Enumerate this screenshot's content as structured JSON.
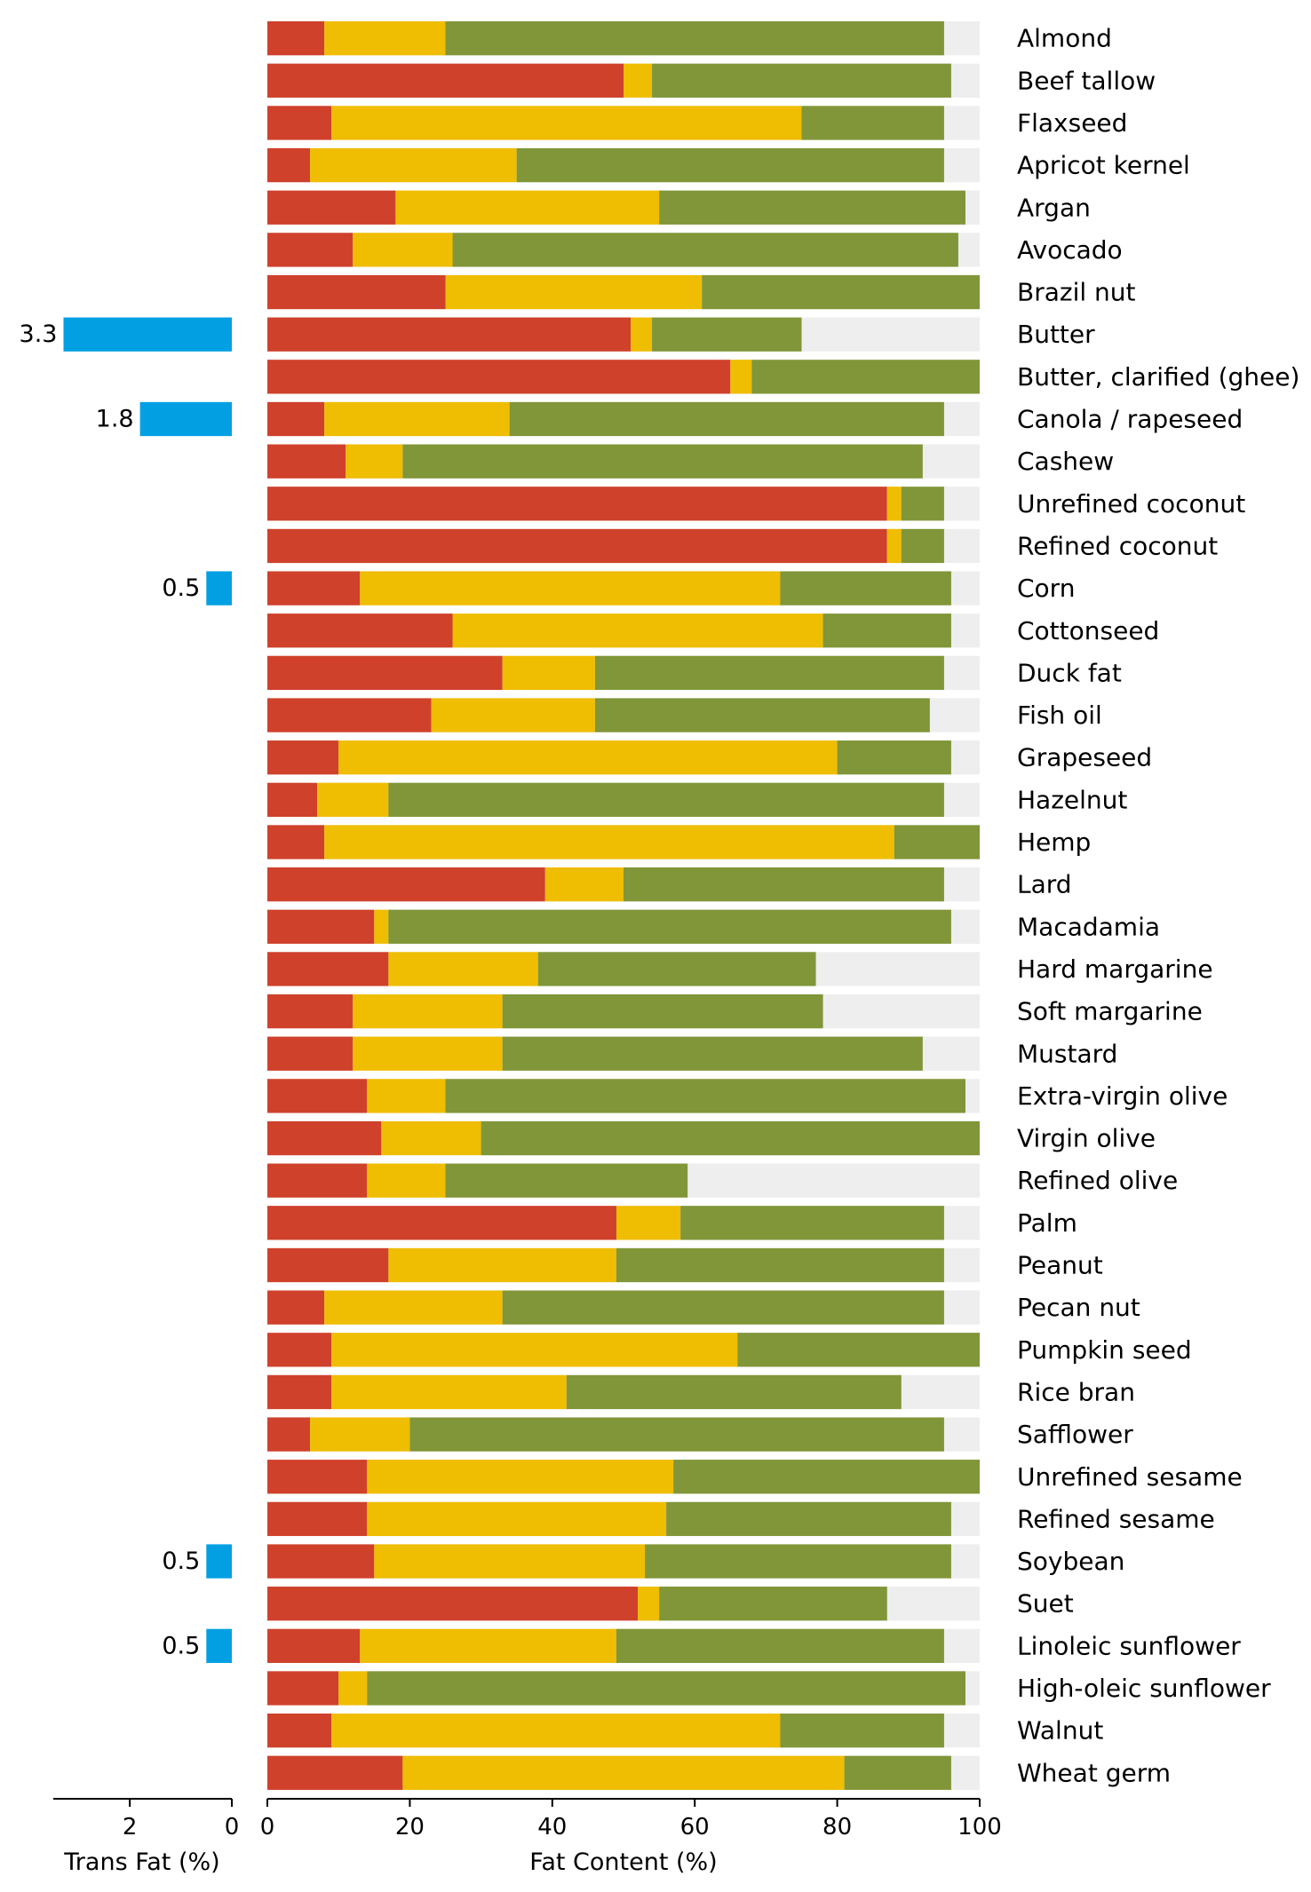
{
  "chart_data": [
    {
      "type": "bar",
      "orientation": "horizontal",
      "stacked": true,
      "xlabel": "Fat Content (%)",
      "ylabel": "",
      "xlim": [
        0,
        100
      ],
      "xticks": [
        0,
        20,
        40,
        60,
        80,
        100
      ],
      "categories": [
        "Almond",
        "Beef tallow",
        "Flaxseed",
        "Apricot kernel",
        "Argan",
        "Avocado",
        "Brazil nut",
        "Butter",
        "Butter, clarified (ghee)",
        "Canola / rapeseed",
        "Cashew",
        "Unrefined coconut",
        "Refined coconut",
        "Corn",
        "Cottonseed",
        "Duck fat",
        "Fish oil",
        "Grapeseed",
        "Hazelnut",
        "Hemp",
        "Lard",
        "Macadamia",
        "Hard margarine",
        "Soft margarine",
        "Mustard",
        "Extra-virgin olive",
        "Virgin olive",
        "Refined olive",
        "Palm",
        "Peanut",
        "Pecan nut",
        "Pumpkin seed",
        "Rice bran",
        "Safflower",
        "Unrefined sesame",
        "Refined sesame",
        "Soybean",
        "Suet",
        "Linoleic sunflower",
        "High-oleic sunflower",
        "Walnut",
        "Wheat germ"
      ],
      "series": [
        {
          "color": "#cf412b",
          "values": [
            8,
            50,
            9,
            6,
            18,
            12,
            25,
            51,
            65,
            8,
            11,
            87,
            87,
            13,
            26,
            33,
            23,
            10,
            7,
            8,
            39,
            15,
            17,
            12,
            12,
            14,
            16,
            14,
            49,
            17,
            8,
            9,
            9,
            6,
            14,
            14,
            15,
            52,
            13,
            10,
            9,
            19
          ]
        },
        {
          "color": "#efbd02",
          "values": [
            17,
            4,
            66,
            29,
            37,
            14,
            36,
            3,
            3,
            26,
            8,
            2,
            2,
            59,
            52,
            13,
            23,
            70,
            10,
            80,
            11,
            2,
            21,
            21,
            21,
            11,
            14,
            11,
            9,
            32,
            25,
            57,
            33,
            14,
            43,
            42,
            38,
            3,
            36,
            4,
            63,
            62
          ]
        },
        {
          "color": "#809639",
          "values": [
            70,
            42,
            20,
            60,
            43,
            71,
            39,
            21,
            32,
            61,
            73,
            6,
            6,
            24,
            18,
            49,
            47,
            16,
            78,
            12,
            45,
            79,
            39,
            45,
            59,
            73,
            70,
            34,
            37,
            46,
            62,
            34,
            47,
            75,
            43,
            40,
            43,
            32,
            46,
            84,
            23,
            15
          ]
        }
      ],
      "background_color": "#eeeeee"
    },
    {
      "type": "bar",
      "orientation": "horizontal",
      "xlabel": "Trans Fat (%)",
      "xlim": [
        3.5,
        0
      ],
      "xticks": [
        2,
        0
      ],
      "color": "#02a0e3",
      "points": [
        {
          "category": "Butter",
          "value": 3.3,
          "label": "3.3"
        },
        {
          "category": "Canola / rapeseed",
          "value": 1.8,
          "label": "1.8"
        },
        {
          "category": "Corn",
          "value": 0.5,
          "label": "0.5"
        },
        {
          "category": "Soybean",
          "value": 0.5,
          "label": "0.5"
        },
        {
          "category": "Linoleic sunflower",
          "value": 0.5,
          "label": "0.5"
        }
      ]
    }
  ]
}
